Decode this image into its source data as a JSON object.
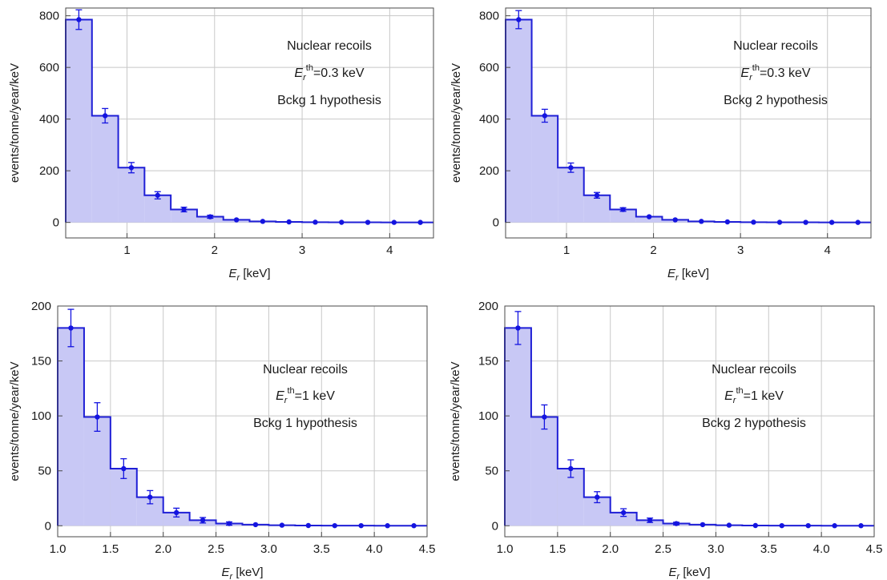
{
  "colors": {
    "histogram_line": "#1f1fd6",
    "histogram_fill": "#c8c8f5",
    "points": "#1414e0",
    "grid": "#c8c8c8",
    "frame": "#4a4a4a"
  },
  "chart_data": [
    {
      "type": "bar",
      "xlabel": "E_r [keV]",
      "xlabel_main": "E",
      "xlabel_sub": "r",
      "xlabel_rest": " [keV]",
      "ylabel": "events/tonne/year/keV",
      "xlim": [
        0.3,
        4.5
      ],
      "ylim": [
        -60,
        830
      ],
      "xticks": [
        1,
        2,
        3,
        4
      ],
      "xtick_labels": [
        "1",
        "2",
        "3",
        "4"
      ],
      "yticks": [
        0,
        200,
        400,
        600,
        800
      ],
      "ytick_labels": [
        "0",
        "200",
        "400",
        "600",
        "800"
      ],
      "grid": true,
      "annotation": {
        "line1": "Nuclear recoils",
        "line2_main": "E",
        "line2_sub": "r",
        "line2_sup": "th",
        "line2_rest": "=0.3 keV",
        "line3": "Bckg 1 hypothesis"
      },
      "bin_edges": [
        0.3,
        0.6,
        0.9,
        1.2,
        1.5,
        1.8,
        2.1,
        2.4,
        2.7,
        3.0,
        3.3,
        3.6,
        3.9,
        4.2,
        4.5
      ],
      "values": [
        785,
        413,
        212,
        105,
        50,
        22,
        10,
        4,
        2,
        1,
        0.5,
        0.3,
        0.2,
        0.1
      ],
      "errors": [
        38,
        28,
        20,
        14,
        9,
        6,
        4,
        2,
        1,
        1,
        0.5,
        0.5,
        0.5,
        0.5
      ]
    },
    {
      "type": "bar",
      "xlabel": "E_r [keV]",
      "xlabel_main": "E",
      "xlabel_sub": "r",
      "xlabel_rest": " [keV]",
      "ylabel": "events/tonne/year/keV",
      "xlim": [
        0.3,
        4.5
      ],
      "ylim": [
        -60,
        830
      ],
      "xticks": [
        1,
        2,
        3,
        4
      ],
      "xtick_labels": [
        "1",
        "2",
        "3",
        "4"
      ],
      "yticks": [
        0,
        200,
        400,
        600,
        800
      ],
      "ytick_labels": [
        "0",
        "200",
        "400",
        "600",
        "800"
      ],
      "grid": true,
      "annotation": {
        "line1": "Nuclear recoils",
        "line2_main": "E",
        "line2_sub": "r",
        "line2_sup": "th",
        "line2_rest": "=0.3 keV",
        "line3": "Bckg 2 hypothesis"
      },
      "bin_edges": [
        0.3,
        0.6,
        0.9,
        1.2,
        1.5,
        1.8,
        2.1,
        2.4,
        2.7,
        3.0,
        3.3,
        3.6,
        3.9,
        4.2,
        4.5
      ],
      "values": [
        785,
        413,
        212,
        105,
        50,
        22,
        10,
        4,
        2,
        1,
        0.5,
        0.3,
        0.2,
        0.1
      ],
      "errors": [
        35,
        25,
        18,
        11,
        7,
        4,
        3,
        2,
        1,
        1,
        0.5,
        0.5,
        0.5,
        0.5
      ]
    },
    {
      "type": "bar",
      "xlabel": "E_r [keV]",
      "xlabel_main": "E",
      "xlabel_sub": "r",
      "xlabel_rest": " [keV]",
      "ylabel": "events/tonne/year/keV",
      "xlim": [
        1.0,
        4.5
      ],
      "ylim": [
        -10,
        200
      ],
      "xticks": [
        1.0,
        1.5,
        2.0,
        2.5,
        3.0,
        3.5,
        4.0,
        4.5
      ],
      "xtick_labels": [
        "1.0",
        "1.5",
        "2.0",
        "2.5",
        "3.0",
        "3.5",
        "4.0",
        "4.5"
      ],
      "yticks": [
        0,
        50,
        100,
        150,
        200
      ],
      "ytick_labels": [
        "0",
        "50",
        "100",
        "150",
        "200"
      ],
      "grid": true,
      "annotation": {
        "line1": "Nuclear recoils",
        "line2_main": "E",
        "line2_sub": "r",
        "line2_sup": "th",
        "line2_rest": "=1 keV",
        "line3": "Bckg 1 hypothesis"
      },
      "bin_edges": [
        1.0,
        1.25,
        1.5,
        1.75,
        2.0,
        2.25,
        2.5,
        2.75,
        3.0,
        3.25,
        3.5,
        3.75,
        4.0,
        4.25,
        4.5
      ],
      "values": [
        180,
        99,
        52,
        26,
        12,
        5,
        2,
        1,
        0.5,
        0.2,
        0.1,
        0.1,
        0.05,
        0.05
      ],
      "errors": [
        17,
        13,
        9,
        6,
        4,
        2.5,
        1.5,
        0.8,
        0.5,
        0.3,
        0.2,
        0.2,
        0.1,
        0.1
      ]
    },
    {
      "type": "bar",
      "xlabel": "E_r [keV]",
      "xlabel_main": "E",
      "xlabel_sub": "r",
      "xlabel_rest": " [keV]",
      "ylabel": "events/tonne/year/keV",
      "xlim": [
        1.0,
        4.5
      ],
      "ylim": [
        -10,
        200
      ],
      "xticks": [
        1.0,
        1.5,
        2.0,
        2.5,
        3.0,
        3.5,
        4.0,
        4.5
      ],
      "xtick_labels": [
        "1.0",
        "1.5",
        "2.0",
        "2.5",
        "3.0",
        "3.5",
        "4.0",
        "4.5"
      ],
      "yticks": [
        0,
        50,
        100,
        150,
        200
      ],
      "ytick_labels": [
        "0",
        "50",
        "100",
        "150",
        "200"
      ],
      "grid": true,
      "annotation": {
        "line1": "Nuclear recoils",
        "line2_main": "E",
        "line2_sub": "r",
        "line2_sup": "th",
        "line2_rest": "=1 keV",
        "line3": "Bckg 2 hypothesis"
      },
      "bin_edges": [
        1.0,
        1.25,
        1.5,
        1.75,
        2.0,
        2.25,
        2.5,
        2.75,
        3.0,
        3.25,
        3.5,
        3.75,
        4.0,
        4.25,
        4.5
      ],
      "values": [
        180,
        99,
        52,
        26,
        12,
        5,
        2,
        1,
        0.5,
        0.2,
        0.1,
        0.1,
        0.05,
        0.05
      ],
      "errors": [
        15,
        11,
        8,
        5,
        3.5,
        2,
        1.2,
        0.7,
        0.4,
        0.3,
        0.2,
        0.2,
        0.1,
        0.1
      ]
    }
  ]
}
